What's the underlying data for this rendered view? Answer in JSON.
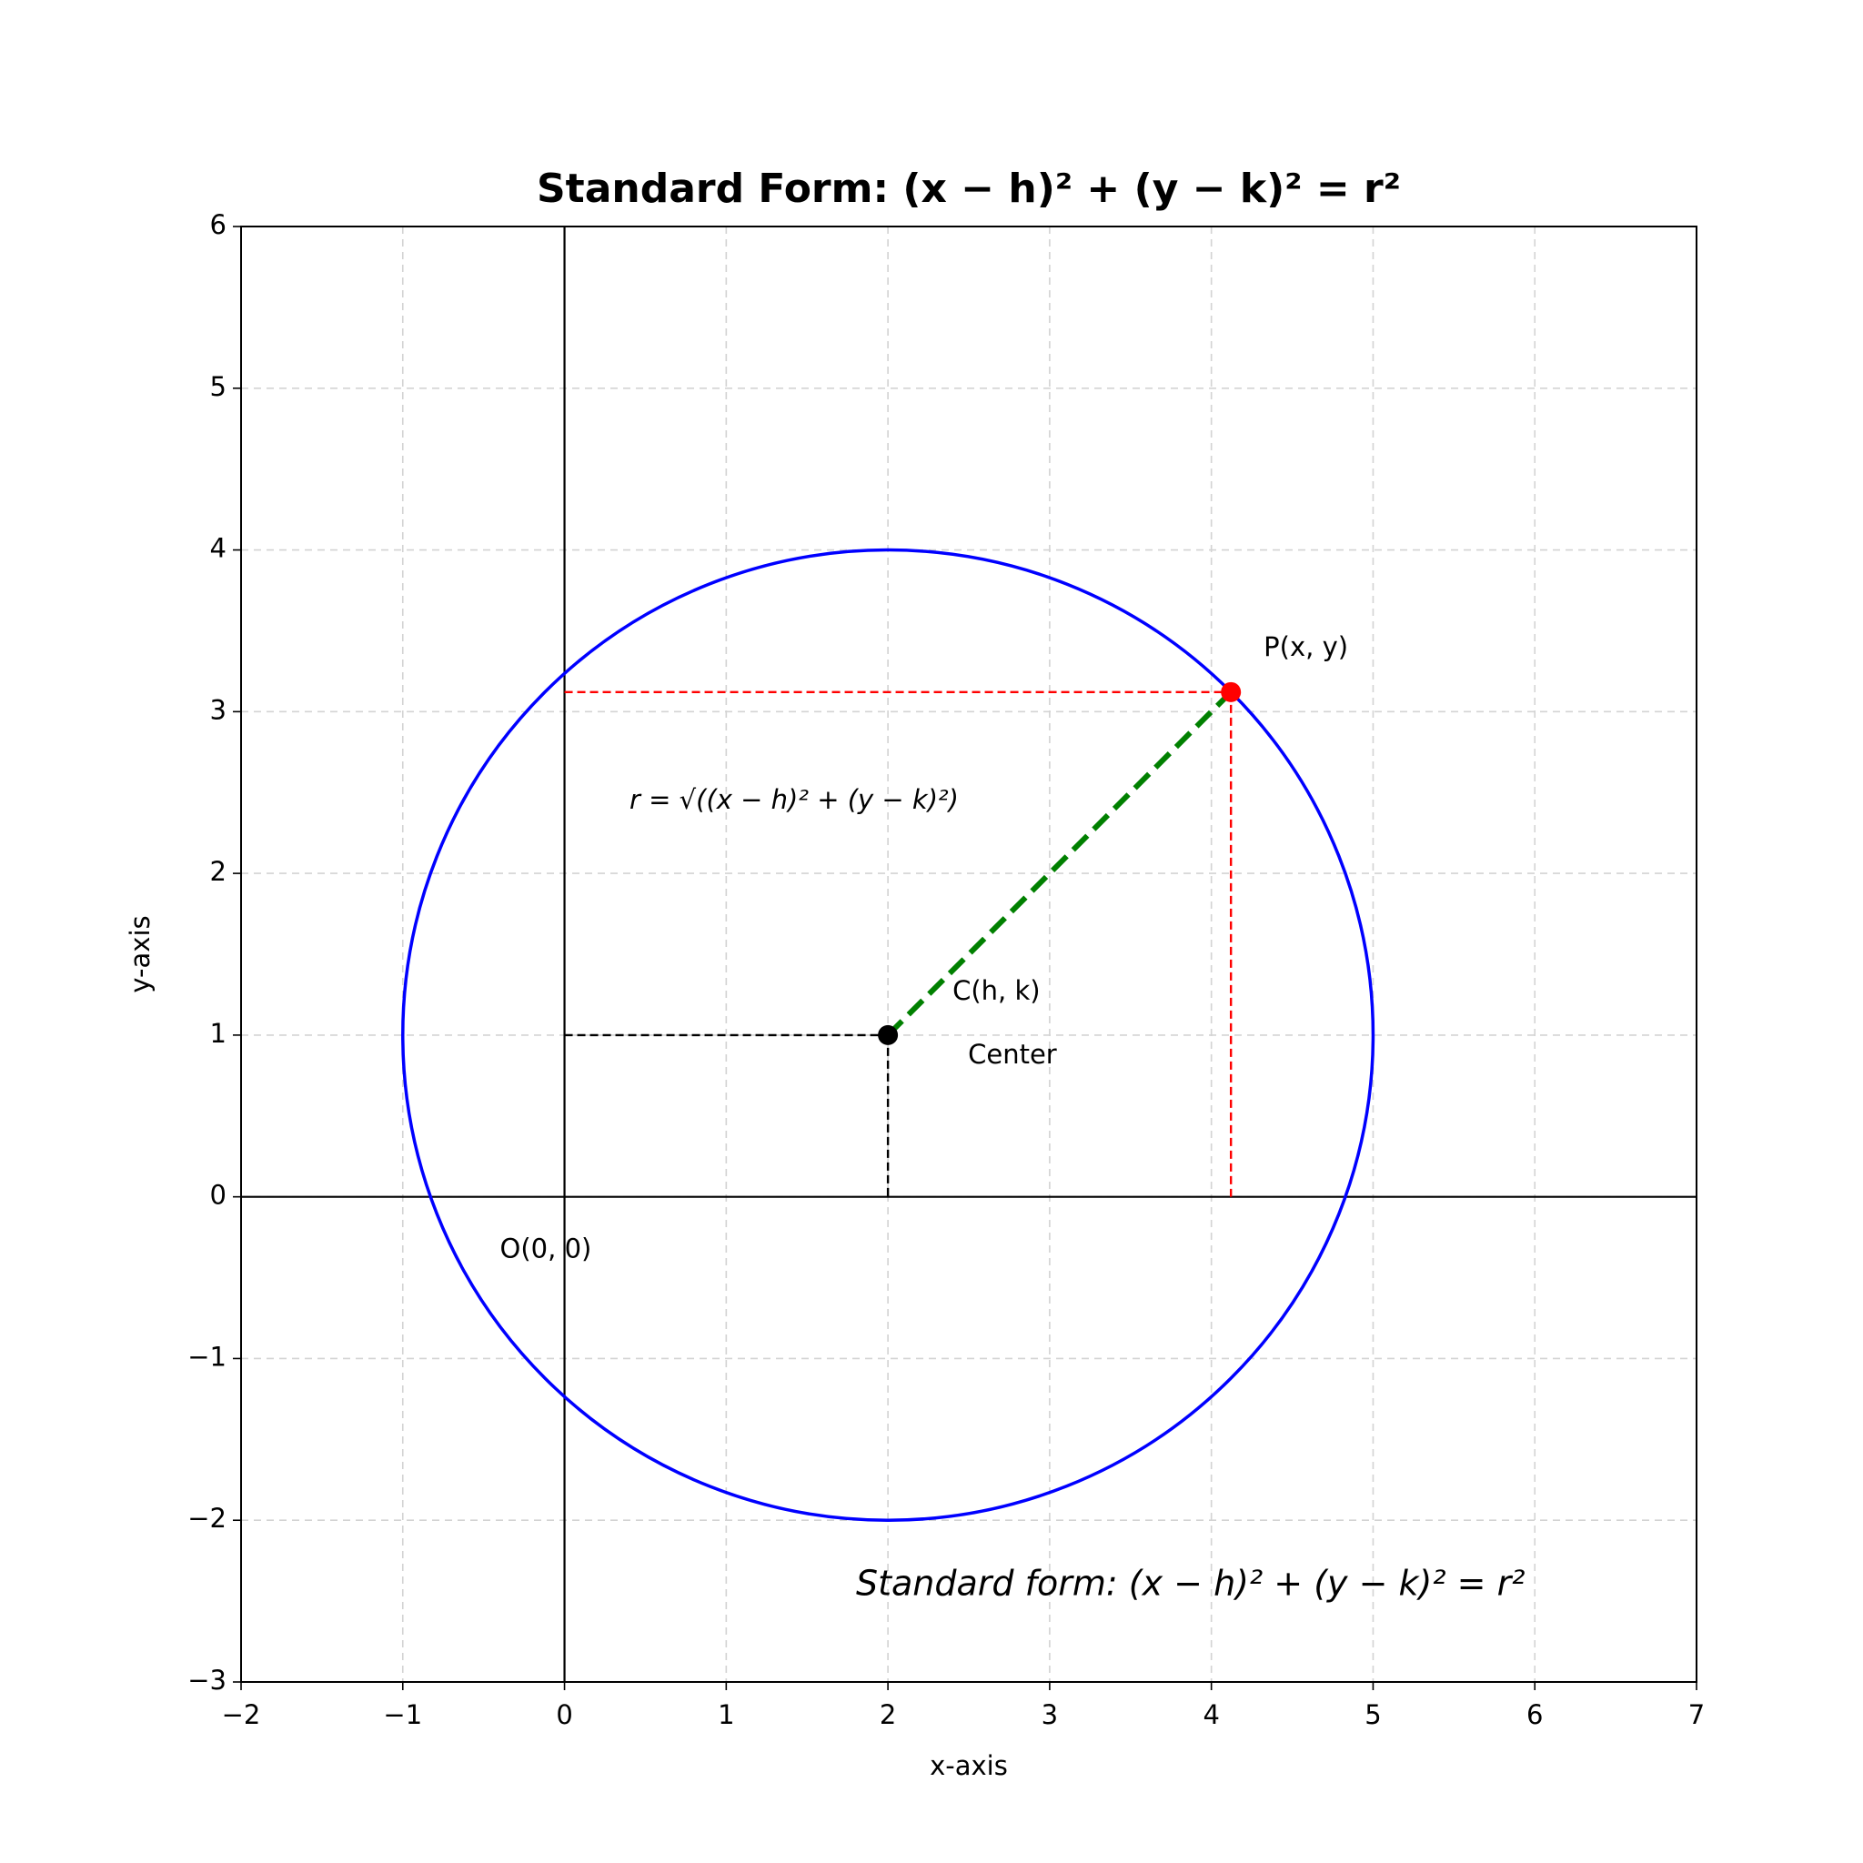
{
  "chart_data": {
    "type": "circle",
    "title": "Standard Form: (x − h)² + (y − k)² = r²",
    "x_label": "x-axis",
    "y_label": "y-axis",
    "xlim": [
      -2,
      7
    ],
    "ylim": [
      -3,
      6
    ],
    "xticks": [
      {
        "value": -2,
        "label": "−2"
      },
      {
        "value": -1,
        "label": "−1"
      },
      0,
      1,
      2,
      3,
      4,
      5,
      6,
      7
    ],
    "yticks": [
      {
        "value": -3,
        "label": "−3"
      },
      {
        "value": -2,
        "label": "−2"
      },
      {
        "value": -1,
        "label": "−1"
      },
      0,
      1,
      2,
      3,
      4,
      5,
      6
    ],
    "grid": true,
    "center": [
      2,
      1
    ],
    "radius": 3,
    "point": [
      4.121,
      3.121
    ],
    "circle_color": "#0000ff",
    "point_color": "#ff0000",
    "center_color": "#000000",
    "radius_color": "#008000",
    "point_label": "P(x, y)",
    "center_label": "C(h, k)",
    "center_caption": "Center",
    "origin_label": "O(0, 0)",
    "radius_formula": "r = √((x − h)² + (y − k)²)",
    "standard_form": "Standard form: (x − h)² + (y − k)² = r²"
  }
}
